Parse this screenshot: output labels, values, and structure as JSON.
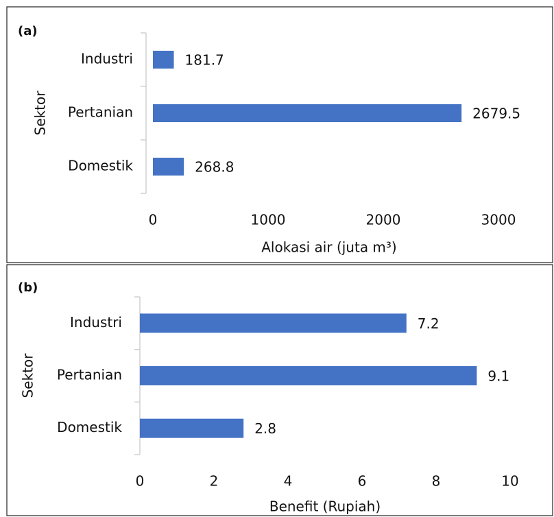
{
  "chart_data": [
    {
      "type": "bar",
      "orientation": "horizontal",
      "panel_label": "(a)",
      "ylabel": "Sektor",
      "xlabel": "Alokasi air (juta m³)",
      "categories": [
        "Industri",
        "Pertanian",
        "Domestik"
      ],
      "values": [
        181.7,
        2679.5,
        268.8
      ],
      "color": "#4472c4",
      "xlim": [
        0,
        3000
      ],
      "xticks": [
        0,
        1000,
        2000,
        3000
      ],
      "grid": false
    },
    {
      "type": "bar",
      "orientation": "horizontal",
      "panel_label": "(b)",
      "ylabel": "Sektor",
      "xlabel": "Benefit (Rupiah)",
      "categories": [
        "Industri",
        "Pertanian",
        "Domestik"
      ],
      "values": [
        7.2,
        9.1,
        2.8
      ],
      "color": "#4472c4",
      "xlim": [
        0,
        10
      ],
      "xticks": [
        0,
        2,
        4,
        6,
        8,
        10
      ],
      "grid": false
    }
  ]
}
